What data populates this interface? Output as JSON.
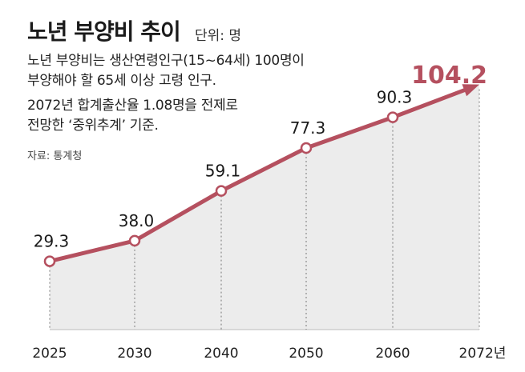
{
  "header": {
    "title": "노년 부양비 추이",
    "unit": "단위: 명",
    "desc1_line1": "노년 부양비는 생산연령인구(15~64세) 100명이",
    "desc1_line2": "부양해야 할 65세 이상 고령 인구.",
    "desc2_line1": "2072년 합계출산율 1.08명을 전제로",
    "desc2_line2": "전망한 ‘중위추계’ 기준.",
    "source": "자료: 통계청"
  },
  "colors": {
    "line": "#b5505f",
    "highlight": "#b5505f",
    "area": "#ececec",
    "text": "#222222"
  },
  "chart_data": {
    "type": "line",
    "title": "노년 부양비 추이",
    "xlabel": "",
    "ylabel": "단위: 명",
    "categories": [
      "2025",
      "2030",
      "2040",
      "2050",
      "2060",
      "2072년"
    ],
    "values": [
      29.3,
      38.0,
      59.1,
      77.3,
      90.3,
      104.2
    ],
    "value_labels": [
      "29.3",
      "38.0",
      "59.1",
      "77.3",
      "90.3",
      "104.2"
    ],
    "ylim": [
      0,
      110
    ],
    "grid": false,
    "highlight_last": true
  }
}
